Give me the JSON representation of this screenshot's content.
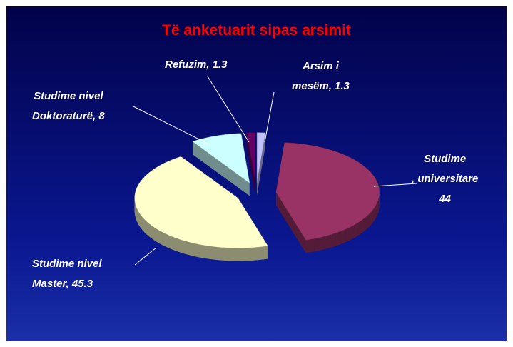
{
  "chart_data": {
    "type": "pie",
    "title": "Të anketuarit sipas arsimit",
    "values": [
      1.3,
      44,
      45.3,
      8,
      1.3
    ],
    "value_labels": [
      "Arsim i\nmesëm, 1.3",
      "Studime\n, universitare\n44",
      "Studime nivel\nMaster, 45.3",
      "Studime nivel\nDoktoraturë, 8",
      "Refuzim, 1.3"
    ],
    "colors": [
      "#c0c0ff",
      "#993366",
      "#ffffcc",
      "#ccffff",
      "#660066"
    ]
  }
}
